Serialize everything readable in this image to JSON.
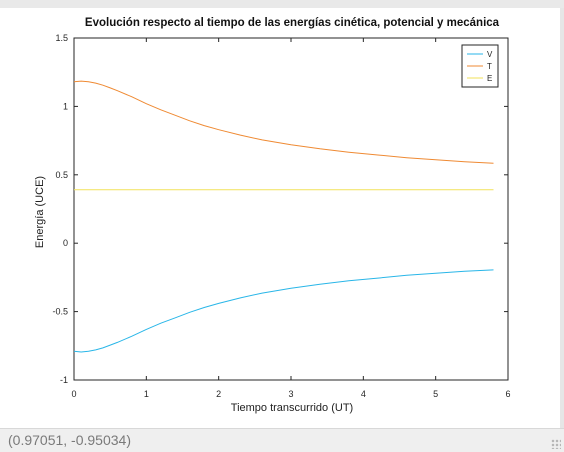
{
  "status": {
    "coordinates": "(0.97051, -0.95034)"
  },
  "chart_data": {
    "type": "line",
    "title": "Evolución respecto al tiempo de las energías cinética, potencial y mecánica",
    "xlabel": "Tiempo transcurrido (UT)",
    "ylabel": "Energía (UCE)",
    "xlim": [
      0,
      6
    ],
    "ylim": [
      -1,
      1.5
    ],
    "xticks": [
      0,
      1,
      2,
      3,
      4,
      5,
      6
    ],
    "xtick_labels": [
      "0",
      "1",
      "2",
      "3",
      "4",
      "5",
      "6"
    ],
    "yticks": [
      -1,
      -0.5,
      0,
      0.5,
      1,
      1.5
    ],
    "ytick_labels": [
      "-1",
      "-0.5",
      "0",
      "0.5",
      "1",
      "1.5"
    ],
    "grid": false,
    "legend_position": "top-right",
    "series": [
      {
        "name": "V",
        "color": "#29b6e8",
        "x": [
          0,
          0.1,
          0.2,
          0.3,
          0.4,
          0.5,
          0.6,
          0.8,
          1.0,
          1.2,
          1.4,
          1.6,
          1.8,
          2.0,
          2.3,
          2.6,
          3.0,
          3.4,
          3.8,
          4.2,
          4.6,
          5.0,
          5.4,
          5.8
        ],
        "y": [
          -0.79,
          -0.795,
          -0.79,
          -0.78,
          -0.765,
          -0.745,
          -0.725,
          -0.68,
          -0.63,
          -0.585,
          -0.545,
          -0.505,
          -0.47,
          -0.44,
          -0.4,
          -0.365,
          -0.33,
          -0.3,
          -0.275,
          -0.255,
          -0.235,
          -0.22,
          -0.205,
          -0.195
        ]
      },
      {
        "name": "T",
        "color": "#ef8a33",
        "x": [
          0,
          0.1,
          0.2,
          0.3,
          0.4,
          0.5,
          0.6,
          0.8,
          1.0,
          1.2,
          1.4,
          1.6,
          1.8,
          2.0,
          2.3,
          2.6,
          3.0,
          3.4,
          3.8,
          4.2,
          4.6,
          5.0,
          5.4,
          5.8
        ],
        "y": [
          1.18,
          1.185,
          1.18,
          1.17,
          1.155,
          1.135,
          1.115,
          1.07,
          1.02,
          0.975,
          0.935,
          0.895,
          0.86,
          0.83,
          0.79,
          0.755,
          0.72,
          0.69,
          0.665,
          0.645,
          0.625,
          0.61,
          0.595,
          0.585
        ]
      },
      {
        "name": "E",
        "color": "#f2e25a",
        "x": [
          0,
          5.8
        ],
        "y": [
          0.39,
          0.39
        ]
      }
    ]
  }
}
